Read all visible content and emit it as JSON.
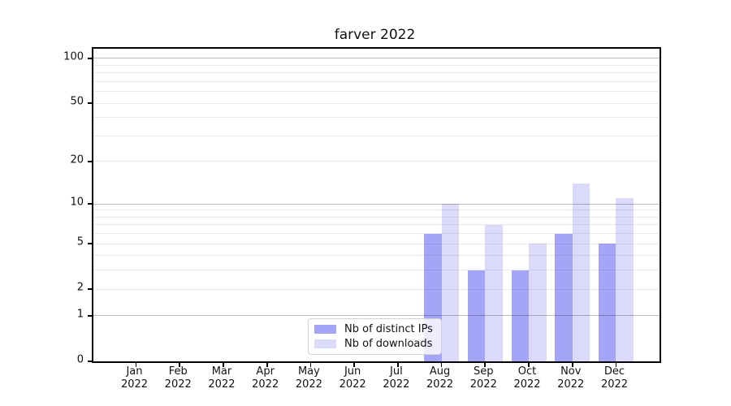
{
  "chart_data": {
    "type": "bar",
    "title": "farver 2022",
    "categories": [
      "Jan 2022",
      "Feb 2022",
      "Mar 2022",
      "Apr 2022",
      "May 2022",
      "Jun 2022",
      "Jul 2022",
      "Aug 2022",
      "Sep 2022",
      "Oct 2022",
      "Nov 2022",
      "Dec 2022"
    ],
    "series": [
      {
        "name": "Nb of distinct IPs",
        "color": "#a5a5f8",
        "values": [
          0,
          0,
          0,
          0,
          0,
          0,
          0,
          6,
          3,
          3,
          6,
          5
        ]
      },
      {
        "name": "Nb of downloads",
        "color": "#dbdbf9",
        "values": [
          0,
          0,
          0,
          0,
          0,
          0,
          0,
          10,
          7,
          5,
          14,
          11
        ]
      }
    ],
    "xlabel": "",
    "ylabel": "",
    "yscale": "log1p",
    "ylim": [
      0,
      116
    ],
    "y_tick_values": [
      0,
      1,
      2,
      5,
      10,
      20,
      50,
      100
    ],
    "grid": "on",
    "grid_major_values": [
      1,
      10,
      100
    ],
    "grid_minor_values": [
      2,
      3,
      4,
      5,
      6,
      7,
      8,
      9,
      20,
      30,
      40,
      50,
      60,
      70,
      80,
      90
    ],
    "legend_position": "lower-center-inside"
  },
  "style": {
    "background": "#ffffff",
    "spine_color": "#000000",
    "text_color": "#111111",
    "bar_color_series1": "#a5a5f8",
    "bar_color_series2": "#dbdbf9",
    "legend_border_color": "#d2d2d2"
  }
}
